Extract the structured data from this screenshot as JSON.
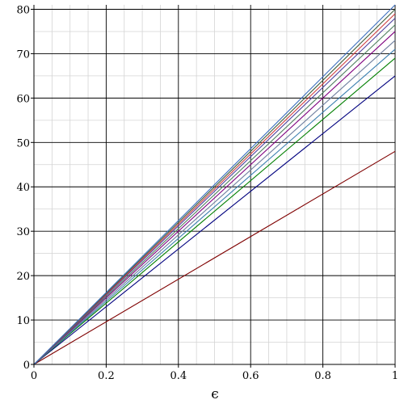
{
  "chart_data": {
    "type": "line",
    "title": "",
    "xlabel": "ϵ",
    "ylabel": "",
    "xlim": [
      0,
      1
    ],
    "ylim": [
      0,
      81
    ],
    "grid": true,
    "x_ticks": [
      "0",
      "0.2",
      "0.4",
      "0.6",
      "0.8",
      "1"
    ],
    "y_ticks": [
      "0",
      "10",
      "20",
      "30",
      "40",
      "50",
      "60",
      "70",
      "80"
    ],
    "x_tick_values": [
      0,
      0.2,
      0.4,
      0.6,
      0.8,
      1
    ],
    "y_tick_values": [
      0,
      10,
      20,
      30,
      40,
      50,
      60,
      70,
      80
    ],
    "x": [
      0,
      1
    ],
    "series": [
      {
        "color": "#7f0000",
        "values": [
          0,
          48
        ]
      },
      {
        "color": "#00007f",
        "values": [
          0,
          65
        ]
      },
      {
        "color": "#007f00",
        "values": [
          0,
          69
        ]
      },
      {
        "color": "#3b7fb0",
        "values": [
          0,
          71
        ]
      },
      {
        "color": "#6f7f9f",
        "values": [
          0,
          73
        ]
      },
      {
        "color": "#7f007f",
        "values": [
          0,
          75
        ]
      },
      {
        "color": "#4f7f5f",
        "values": [
          0,
          76.5
        ]
      },
      {
        "color": "#4f3f9f",
        "values": [
          0,
          78
        ]
      },
      {
        "color": "#cf3f3f",
        "values": [
          0,
          79
        ]
      },
      {
        "color": "#3f5f3f",
        "values": [
          0,
          80
        ]
      },
      {
        "color": "#3b6fbf",
        "values": [
          0,
          81
        ]
      }
    ]
  }
}
